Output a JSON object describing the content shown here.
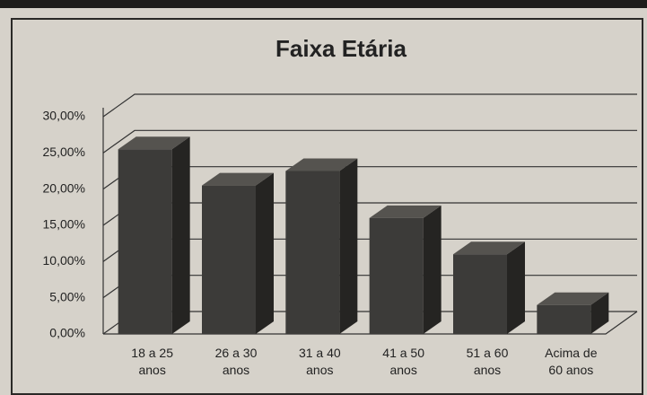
{
  "chart_data": {
    "type": "bar3d",
    "title": "Faixa Etária",
    "categories": [
      "18 a 25 anos",
      "26 a 30 anos",
      "31 a 40 anos",
      "41 a 50 anos",
      "51 a 60 anos",
      "Acima de 60 anos"
    ],
    "values": [
      25.5,
      20.5,
      22.5,
      16,
      11,
      4
    ],
    "color": "#3c3b39",
    "ylim": [
      0,
      30
    ],
    "yticks": [
      {
        "value": 0,
        "label": "0,00%"
      },
      {
        "value": 5,
        "label": "5,00%"
      },
      {
        "value": 10,
        "label": "10,00%"
      },
      {
        "value": 15,
        "label": "15,00%"
      },
      {
        "value": 20,
        "label": "20,00%"
      },
      {
        "value": 25,
        "label": "25,00%"
      },
      {
        "value": 30,
        "label": "30,00%"
      }
    ],
    "grid": true
  }
}
